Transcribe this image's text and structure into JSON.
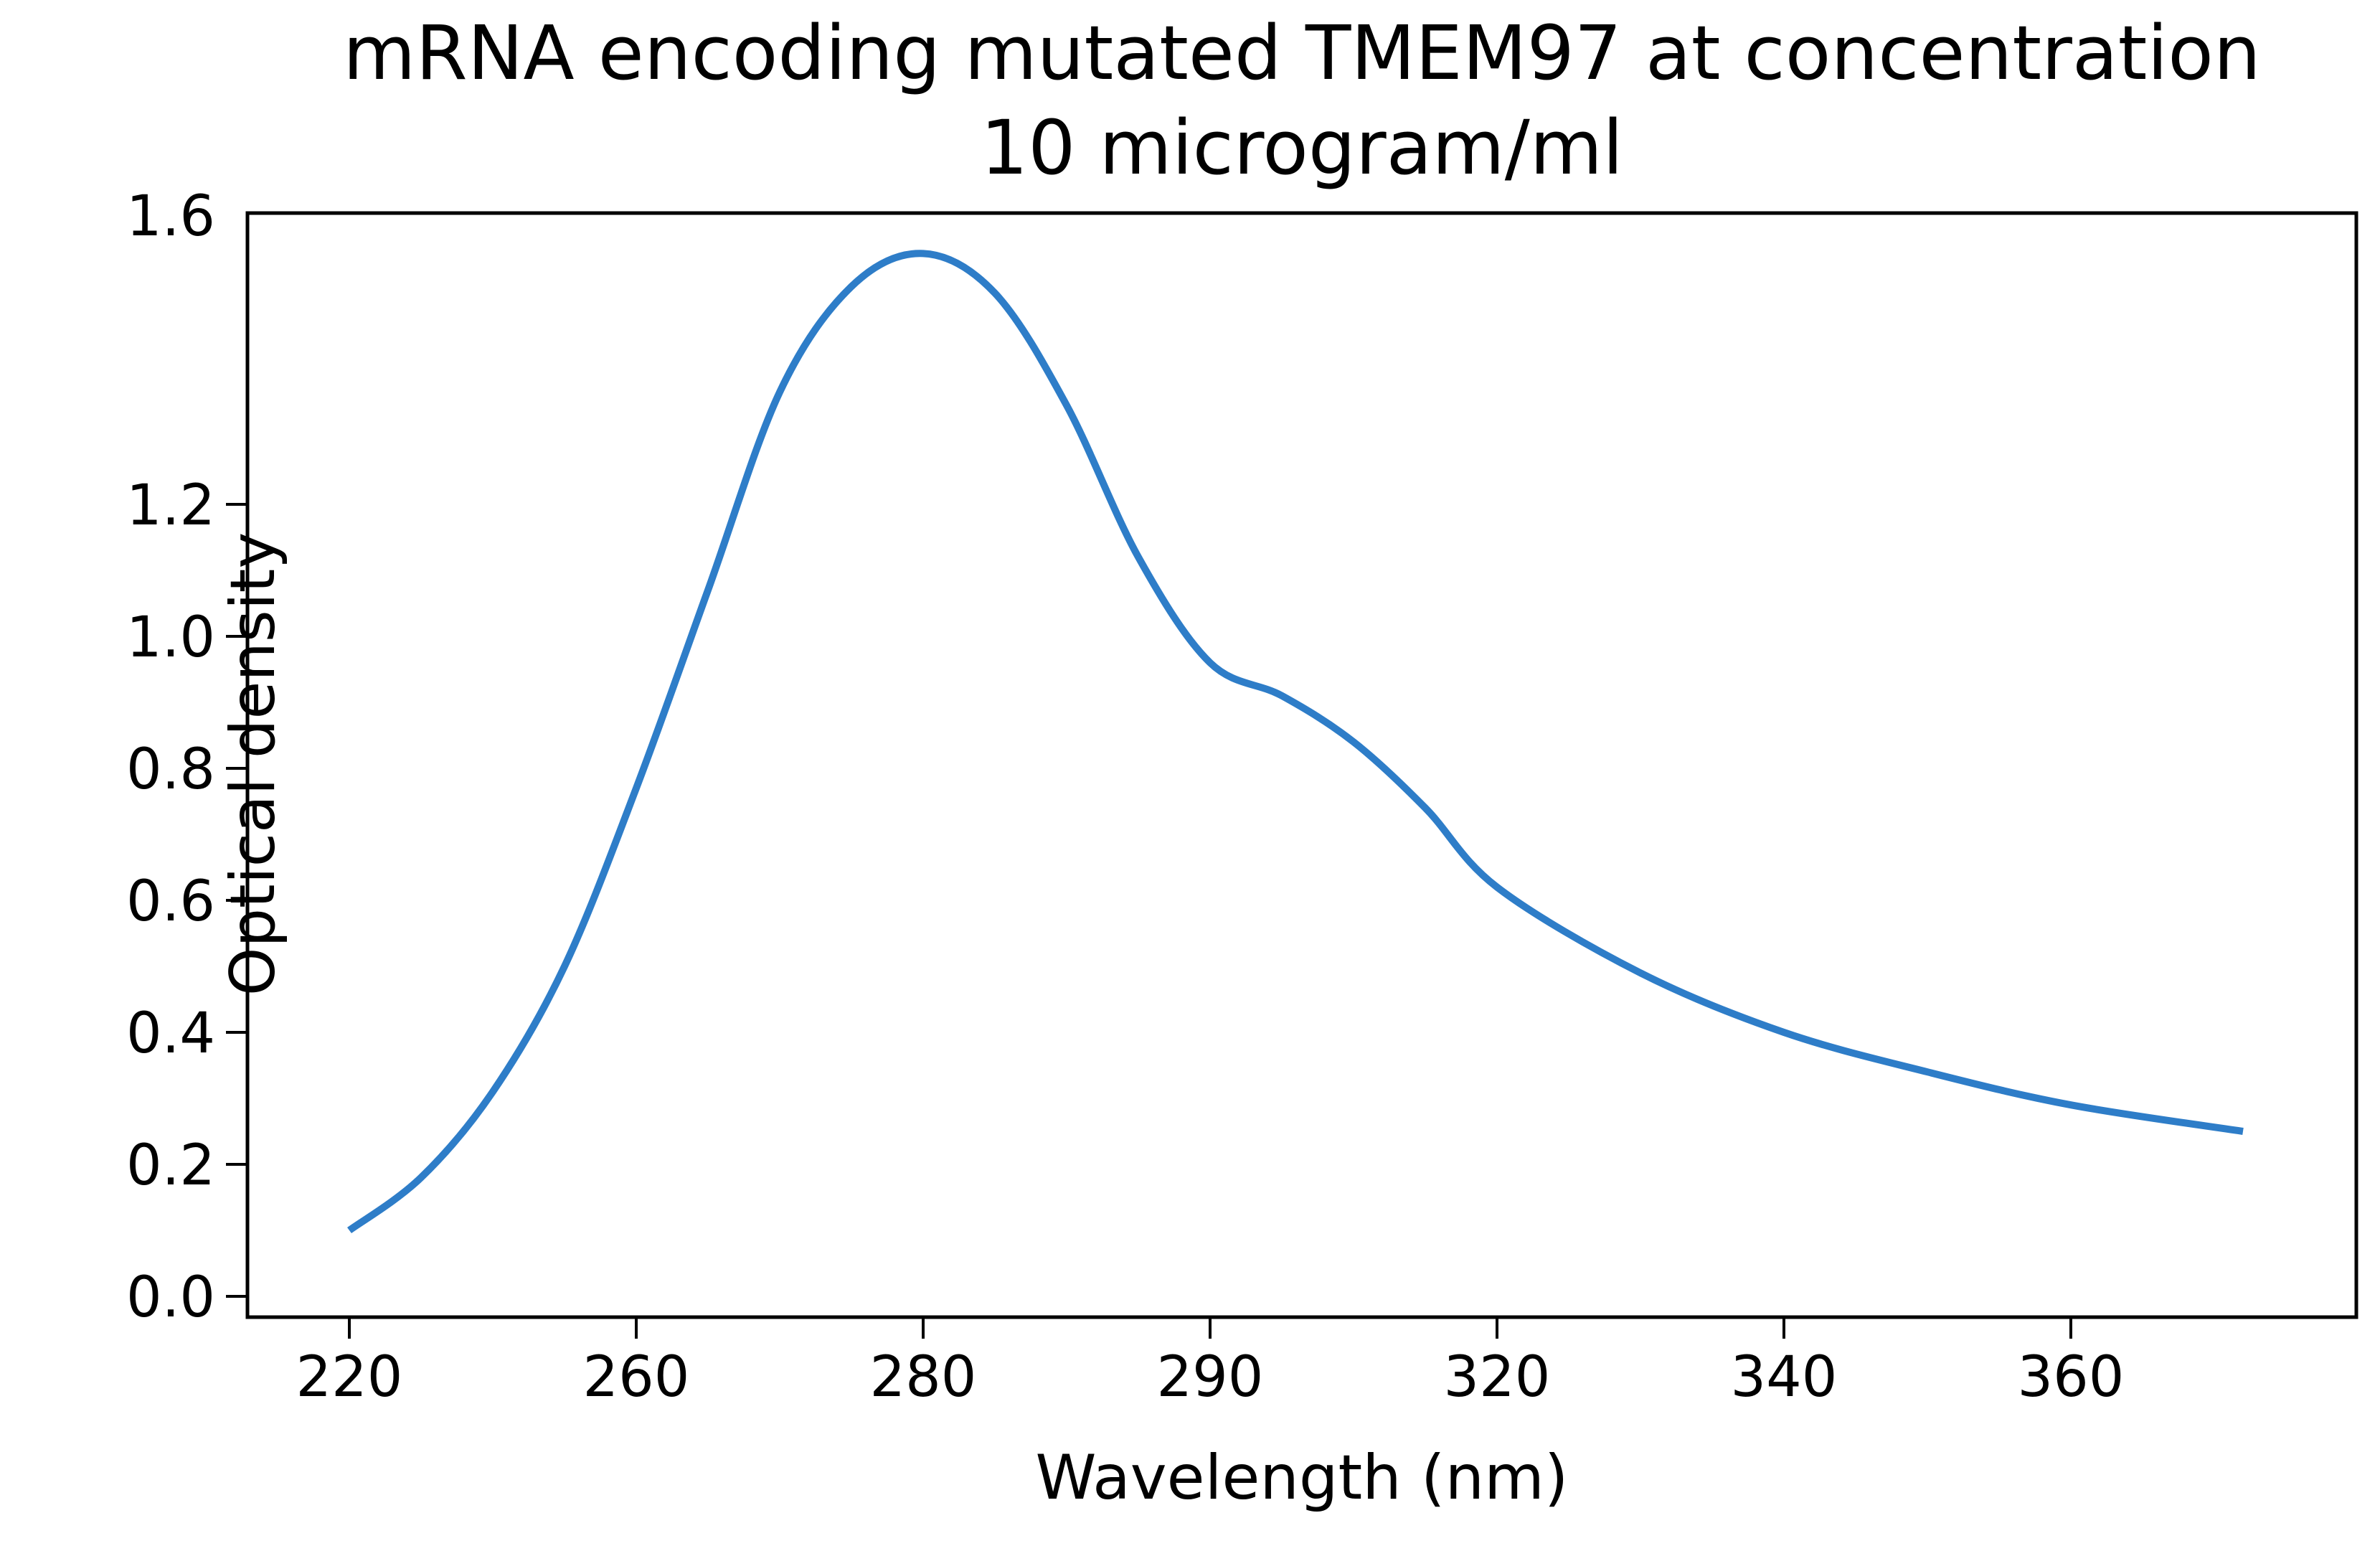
{
  "chart_data": {
    "type": "line",
    "title": "mRNA encoding mutated TMEM97 at concentration\n10 microgram/ml",
    "title_lines": [
      "mRNA encoding mutated TMEM97 at concentration",
      "10 microgram/ml"
    ],
    "xlabel": "Wavelength (nm)",
    "ylabel": "Optical density",
    "x_tick_labels": [
      "220",
      "260",
      "280",
      "290",
      "320",
      "340",
      "360"
    ],
    "y_tick_labels": [
      "0.0",
      "0.2",
      "0.4",
      "0.6",
      "0.8",
      "1.0",
      "1.2",
      "1.6"
    ],
    "ylim": [
      0.0,
      1.68
    ],
    "grid": false,
    "legend": null,
    "line_color": "#2e7dc8",
    "series": [
      {
        "name": "Optical density",
        "x_tick_index": [
          0,
          0.25,
          0.5,
          0.75,
          1.0,
          1.25,
          1.5,
          1.75,
          2.0,
          2.25,
          2.5,
          2.75,
          3.0,
          3.25,
          3.5,
          3.75,
          4.0,
          4.5,
          5.0,
          5.5,
          6.0,
          6.6
        ],
        "x_approx_nm": [
          220,
          230,
          240,
          250,
          260,
          265,
          270,
          275,
          280,
          282.5,
          285,
          287.5,
          290,
          297.5,
          305,
          312.5,
          320,
          330,
          340,
          350,
          360,
          372
        ],
        "values": [
          0.1,
          0.18,
          0.31,
          0.5,
          0.77,
          1.07,
          1.37,
          1.53,
          1.58,
          1.52,
          1.35,
          1.12,
          0.96,
          0.91,
          0.84,
          0.74,
          0.62,
          0.49,
          0.4,
          0.34,
          0.29,
          0.25
        ]
      }
    ]
  }
}
